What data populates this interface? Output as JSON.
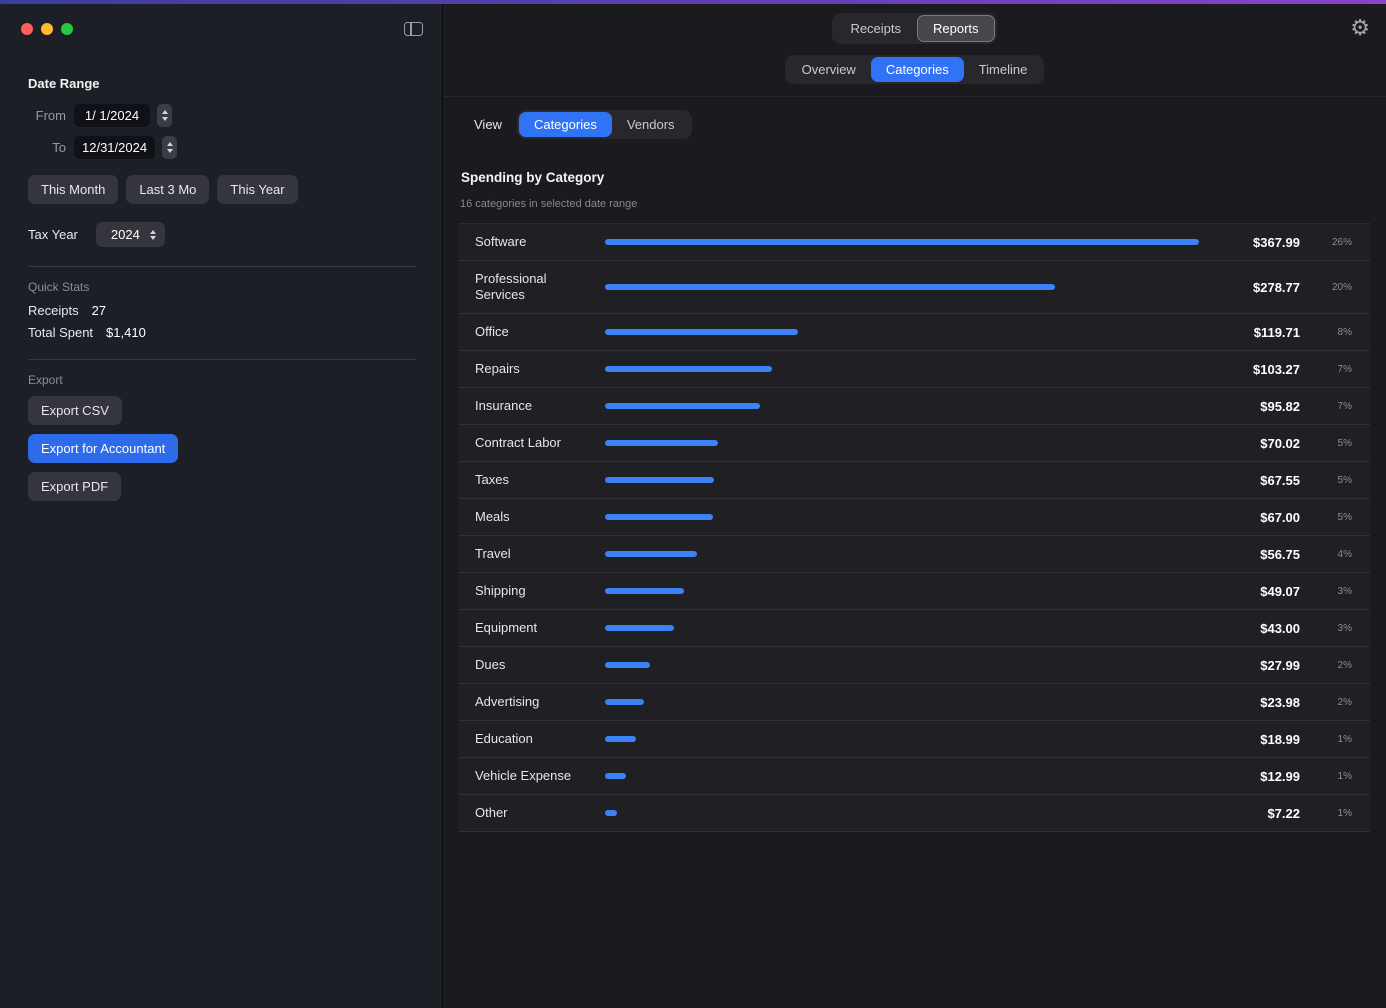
{
  "window": {
    "top_gradient": [
      "#3c3e9f",
      "#8a44c9"
    ],
    "accent_blue": "#3173f5"
  },
  "sidebar": {
    "date_range": {
      "title": "Date Range",
      "from_label": "From",
      "from_value": "1/ 1/2024",
      "to_label": "To",
      "to_value": "12/31/2024",
      "quick_buttons": [
        {
          "label": "This Month"
        },
        {
          "label": "Last 3 Mo"
        },
        {
          "label": "This Year"
        }
      ],
      "tax_year_label": "Tax Year",
      "tax_year_value": "2024"
    },
    "quick_stats": {
      "title": "Quick Stats",
      "rows": [
        {
          "label": "Receipts",
          "value": "27"
        },
        {
          "label": "Total Spent",
          "value": "$1,410"
        }
      ]
    },
    "export": {
      "title": "Export",
      "buttons": [
        {
          "label": "Export CSV",
          "style": "default"
        },
        {
          "label": "Export for Accountant",
          "style": "primary"
        },
        {
          "label": "Export PDF",
          "style": "default"
        }
      ]
    }
  },
  "toolbar": {
    "segments": [
      {
        "label": "Receipts",
        "selected": false
      },
      {
        "label": "Reports",
        "selected": true
      }
    ]
  },
  "report_tabs": [
    {
      "label": "Overview",
      "selected": false
    },
    {
      "label": "Categories",
      "selected": true
    },
    {
      "label": "Timeline",
      "selected": false
    }
  ],
  "view_control": {
    "label": "View",
    "options": [
      {
        "label": "Categories",
        "selected": true
      },
      {
        "label": "Vendors",
        "selected": false
      }
    ]
  },
  "report": {
    "title": "Spending by Category",
    "subtitle": "16 categories in selected date range"
  },
  "chart_data": {
    "type": "bar",
    "orientation": "horizontal",
    "title": "Spending by Category",
    "categories": [
      "Software",
      "Professional Services",
      "Office",
      "Repairs",
      "Insurance",
      "Contract Labor",
      "Taxes",
      "Meals",
      "Travel",
      "Shipping",
      "Equipment",
      "Dues",
      "Advertising",
      "Education",
      "Vehicle Expense",
      "Other"
    ],
    "values": [
      367.99,
      278.77,
      119.71,
      103.27,
      95.82,
      70.02,
      67.55,
      67.0,
      56.75,
      49.07,
      43.0,
      27.99,
      23.98,
      18.99,
      12.99,
      7.22
    ],
    "amount_labels": [
      "$367.99",
      "$278.77",
      "$119.71",
      "$103.27",
      "$95.82",
      "$70.02",
      "$67.55",
      "$67.00",
      "$56.75",
      "$49.07",
      "$43.00",
      "$27.99",
      "$23.98",
      "$18.99",
      "$12.99",
      "$7.22"
    ],
    "percent_labels": [
      "26%",
      "20%",
      "8%",
      "7%",
      "7%",
      "5%",
      "5%",
      "5%",
      "4%",
      "3%",
      "3%",
      "2%",
      "2%",
      "1%",
      "1%",
      "1%"
    ],
    "bar_color": "#3b82f6",
    "xlim": [
      0,
      367.99
    ],
    "grid": false,
    "legend": false
  }
}
